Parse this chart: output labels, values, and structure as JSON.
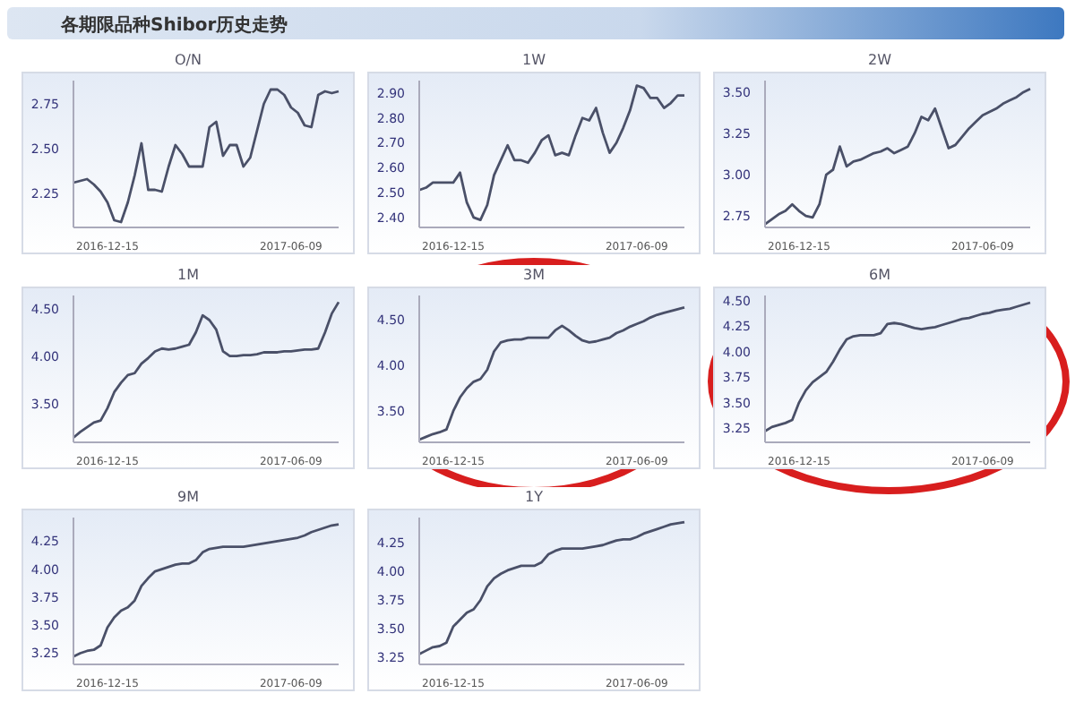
{
  "chart_data": [
    {
      "type": "other",
      "title": "各期限品种Shibor历史走势"
    },
    {
      "type": "line",
      "title": "O/N",
      "categories": [
        null,
        null,
        null,
        null,
        null,
        "2016-12-15",
        null,
        null,
        null,
        null,
        null,
        null,
        null,
        null,
        null,
        null,
        null,
        null,
        null,
        null,
        null,
        null,
        null,
        null,
        null,
        null,
        null,
        null,
        null,
        null,
        null,
        null,
        "2017-06-09",
        null,
        null,
        null,
        null,
        null,
        null,
        null
      ],
      "series": [
        {
          "color": "#4a5068",
          "values": [
            2.31,
            2.32,
            2.33,
            2.3,
            2.26,
            2.2,
            2.1,
            2.09,
            2.2,
            2.35,
            2.53,
            2.27,
            2.27,
            2.26,
            2.4,
            2.52,
            2.47,
            2.4,
            2.4,
            2.4,
            2.62,
            2.65,
            2.46,
            2.52,
            2.52,
            2.4,
            2.45,
            2.6,
            2.75,
            2.83,
            2.83,
            2.8,
            2.73,
            2.7,
            2.63,
            2.62,
            2.8,
            2.82,
            2.81,
            2.82
          ]
        }
      ],
      "ylim": [
        2.06,
        2.88
      ],
      "yticks": [
        2.25,
        {
          "value": 2.5,
          "label": "2.50"
        },
        2.75
      ]
    },
    {
      "type": "line",
      "title": "1W",
      "categories": [
        null,
        null,
        null,
        null,
        null,
        "2016-12-15",
        null,
        null,
        null,
        null,
        null,
        null,
        null,
        null,
        null,
        null,
        null,
        null,
        null,
        null,
        null,
        null,
        null,
        null,
        null,
        null,
        null,
        null,
        null,
        null,
        null,
        null,
        "2017-06-09",
        null,
        null,
        null,
        null,
        null,
        null,
        null
      ],
      "series": [
        {
          "color": "#4a5068",
          "values": [
            2.51,
            2.52,
            2.54,
            2.54,
            2.54,
            2.54,
            2.58,
            2.46,
            2.4,
            2.39,
            2.45,
            2.57,
            2.63,
            2.69,
            2.63,
            2.63,
            2.62,
            2.66,
            2.71,
            2.73,
            2.65,
            2.66,
            2.65,
            2.73,
            2.8,
            2.79,
            2.84,
            2.74,
            2.66,
            2.7,
            2.76,
            2.83,
            2.93,
            2.92,
            2.88,
            2.88,
            2.84,
            2.86,
            2.89,
            2.89
          ]
        }
      ],
      "ylim": [
        2.36,
        2.95
      ],
      "yticks": [
        {
          "value": 2.4,
          "label": "2.40"
        },
        {
          "value": 2.5,
          "label": "2.50"
        },
        {
          "value": 2.6,
          "label": "2.60"
        },
        {
          "value": 2.7,
          "label": "2.70"
        },
        {
          "value": 2.8,
          "label": "2.80"
        },
        {
          "value": 2.9,
          "label": "2.90"
        }
      ]
    },
    {
      "type": "line",
      "title": "2W",
      "categories": [
        null,
        null,
        null,
        null,
        null,
        "2016-12-15",
        null,
        null,
        null,
        null,
        null,
        null,
        null,
        null,
        null,
        null,
        null,
        null,
        null,
        null,
        null,
        null,
        null,
        null,
        null,
        null,
        null,
        null,
        null,
        null,
        null,
        null,
        "2017-06-09",
        null,
        null,
        null,
        null,
        null,
        null,
        null
      ],
      "series": [
        {
          "color": "#4a5068",
          "values": [
            2.7,
            2.73,
            2.76,
            2.78,
            2.82,
            2.78,
            2.75,
            2.74,
            2.82,
            3.0,
            3.03,
            3.17,
            3.05,
            3.08,
            3.09,
            3.11,
            3.13,
            3.14,
            3.16,
            3.13,
            3.15,
            3.17,
            3.25,
            3.35,
            3.33,
            3.4,
            3.28,
            3.16,
            3.18,
            3.23,
            3.28,
            3.32,
            3.36,
            3.38,
            3.4,
            3.43,
            3.45,
            3.47,
            3.5,
            3.52
          ]
        }
      ],
      "ylim": [
        2.68,
        3.57
      ],
      "yticks": [
        2.75,
        {
          "value": 3,
          "label": "3.00"
        },
        3.25,
        {
          "value": 3.5,
          "label": "3.50"
        }
      ]
    },
    {
      "type": "line",
      "title": "1M",
      "categories": [
        null,
        null,
        null,
        null,
        null,
        "2016-12-15",
        null,
        null,
        null,
        null,
        null,
        null,
        null,
        null,
        null,
        null,
        null,
        null,
        null,
        null,
        null,
        null,
        null,
        null,
        null,
        null,
        null,
        null,
        null,
        null,
        null,
        null,
        "2017-06-09",
        null,
        null,
        null,
        null,
        null,
        null,
        null
      ],
      "series": [
        {
          "color": "#4a5068",
          "values": [
            3.14,
            3.2,
            3.25,
            3.3,
            3.32,
            3.45,
            3.62,
            3.72,
            3.8,
            3.82,
            3.92,
            3.98,
            4.05,
            4.08,
            4.07,
            4.08,
            4.1,
            4.12,
            4.25,
            4.43,
            4.38,
            4.28,
            4.05,
            4.0,
            4.0,
            4.01,
            4.01,
            4.02,
            4.04,
            4.04,
            4.04,
            4.05,
            4.05,
            4.06,
            4.07,
            4.07,
            4.08,
            4.25,
            4.45,
            4.57
          ]
        }
      ],
      "ylim": [
        3.09,
        4.64
      ],
      "yticks": [
        {
          "value": 3.5,
          "label": "3.50"
        },
        {
          "value": 4,
          "label": "4.00"
        },
        {
          "value": 4.5,
          "label": "4.50"
        }
      ]
    },
    {
      "type": "line",
      "title": "3M",
      "categories": [
        null,
        null,
        null,
        null,
        null,
        "2016-12-15",
        null,
        null,
        null,
        null,
        null,
        null,
        null,
        null,
        null,
        null,
        null,
        null,
        null,
        null,
        null,
        null,
        null,
        null,
        null,
        null,
        null,
        null,
        null,
        null,
        null,
        null,
        "2017-06-09",
        null,
        null,
        null,
        null,
        null,
        null,
        null
      ],
      "series": [
        {
          "color": "#4a5068",
          "values": [
            3.19,
            3.22,
            3.25,
            3.27,
            3.3,
            3.5,
            3.65,
            3.75,
            3.82,
            3.85,
            3.95,
            4.15,
            4.25,
            4.27,
            4.28,
            4.28,
            4.3,
            4.3,
            4.3,
            4.3,
            4.38,
            4.43,
            4.38,
            4.32,
            4.27,
            4.25,
            4.26,
            4.28,
            4.3,
            4.35,
            4.38,
            4.42,
            4.45,
            4.48,
            4.52,
            4.55,
            4.57,
            4.59,
            4.61,
            4.63
          ]
        }
      ],
      "ylim": [
        3.16,
        4.76
      ],
      "yticks": [
        {
          "value": 3.5,
          "label": "3.50"
        },
        {
          "value": 4,
          "label": "4.00"
        },
        {
          "value": 4.5,
          "label": "4.50"
        }
      ]
    },
    {
      "type": "line",
      "title": "6M",
      "categories": [
        null,
        null,
        null,
        null,
        null,
        "2016-12-15",
        null,
        null,
        null,
        null,
        null,
        null,
        null,
        null,
        null,
        null,
        null,
        null,
        null,
        null,
        null,
        null,
        null,
        null,
        null,
        null,
        null,
        null,
        null,
        null,
        null,
        null,
        "2017-06-09",
        null,
        null,
        null,
        null,
        null,
        null,
        null
      ],
      "series": [
        {
          "color": "#4a5068",
          "values": [
            3.22,
            3.26,
            3.28,
            3.3,
            3.33,
            3.5,
            3.62,
            3.7,
            3.75,
            3.8,
            3.9,
            4.02,
            4.12,
            4.15,
            4.16,
            4.16,
            4.16,
            4.18,
            4.27,
            4.28,
            4.27,
            4.25,
            4.23,
            4.22,
            4.23,
            4.24,
            4.26,
            4.28,
            4.3,
            4.32,
            4.33,
            4.35,
            4.37,
            4.38,
            4.4,
            4.41,
            4.42,
            4.44,
            4.46,
            4.48
          ]
        }
      ],
      "ylim": [
        3.11,
        4.55
      ],
      "yticks": [
        3.25,
        {
          "value": 3.5,
          "label": "3.50"
        },
        3.75,
        {
          "value": 4,
          "label": "4.00"
        },
        4.25,
        {
          "value": 4.5,
          "label": "4.50"
        }
      ]
    },
    {
      "type": "line",
      "title": "9M",
      "categories": [
        null,
        null,
        null,
        null,
        null,
        "2016-12-15",
        null,
        null,
        null,
        null,
        null,
        null,
        null,
        null,
        null,
        null,
        null,
        null,
        null,
        null,
        null,
        null,
        null,
        null,
        null,
        null,
        null,
        null,
        null,
        null,
        null,
        null,
        "2017-06-09",
        null,
        null,
        null,
        null,
        null,
        null,
        null
      ],
      "series": [
        {
          "color": "#4a5068",
          "values": [
            3.22,
            3.25,
            3.27,
            3.28,
            3.32,
            3.48,
            3.57,
            3.63,
            3.66,
            3.72,
            3.85,
            3.92,
            3.98,
            4.0,
            4.02,
            4.04,
            4.05,
            4.05,
            4.08,
            4.15,
            4.18,
            4.19,
            4.2,
            4.2,
            4.2,
            4.2,
            4.21,
            4.22,
            4.23,
            4.24,
            4.25,
            4.26,
            4.27,
            4.28,
            4.3,
            4.33,
            4.35,
            4.37,
            4.39,
            4.4
          ]
        }
      ],
      "ylim": [
        3.15,
        4.46
      ],
      "yticks": [
        3.25,
        {
          "value": 3.5,
          "label": "3.50"
        },
        3.75,
        {
          "value": 4,
          "label": "4.00"
        },
        4.25
      ]
    },
    {
      "type": "line",
      "title": "1Y",
      "categories": [
        null,
        null,
        null,
        null,
        null,
        "2016-12-15",
        null,
        null,
        null,
        null,
        null,
        null,
        null,
        null,
        null,
        null,
        null,
        null,
        null,
        null,
        null,
        null,
        null,
        null,
        null,
        null,
        null,
        null,
        null,
        null,
        null,
        null,
        "2017-06-09",
        null,
        null,
        null,
        null,
        null,
        null,
        null
      ],
      "series": [
        {
          "color": "#4a5068",
          "values": [
            3.28,
            3.31,
            3.34,
            3.35,
            3.38,
            3.52,
            3.58,
            3.64,
            3.67,
            3.75,
            3.87,
            3.94,
            3.98,
            4.01,
            4.03,
            4.05,
            4.05,
            4.05,
            4.08,
            4.15,
            4.18,
            4.2,
            4.2,
            4.2,
            4.2,
            4.21,
            4.22,
            4.23,
            4.25,
            4.27,
            4.28,
            4.28,
            4.3,
            4.33,
            4.35,
            4.37,
            4.39,
            4.41,
            4.42,
            4.43
          ]
        }
      ],
      "ylim": [
        3.19,
        4.47
      ],
      "yticks": [
        3.25,
        {
          "value": 3.5,
          "label": "3.50"
        },
        3.75,
        {
          "value": 4,
          "label": "4.00"
        },
        4.25
      ]
    }
  ]
}
